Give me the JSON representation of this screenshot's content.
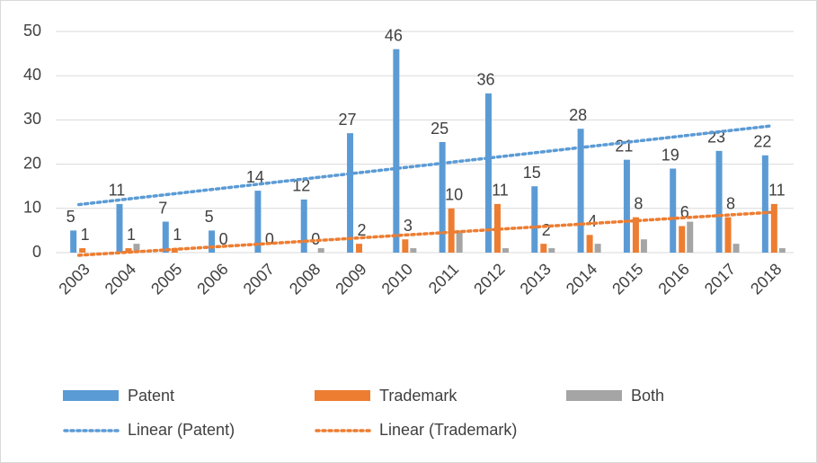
{
  "chart_data": {
    "type": "bar",
    "categories": [
      "2003",
      "2004",
      "2005",
      "2006",
      "2007",
      "2008",
      "2009",
      "2010",
      "2011",
      "2012",
      "2013",
      "2014",
      "2015",
      "2016",
      "2017",
      "2018"
    ],
    "series": [
      {
        "name": "Patent",
        "color": "#5b9bd5",
        "values": [
          5,
          11,
          7,
          5,
          14,
          12,
          27,
          46,
          25,
          36,
          15,
          28,
          21,
          19,
          23,
          22
        ],
        "show_labels": true,
        "trendline": {
          "name": "Linear (Patent)",
          "color": "#5b9bd5"
        }
      },
      {
        "name": "Trademark",
        "color": "#ed7d31",
        "values": [
          1,
          1,
          1,
          0,
          0,
          0,
          2,
          3,
          10,
          11,
          2,
          4,
          8,
          6,
          8,
          11
        ],
        "show_labels": true,
        "trendline": {
          "name": "Linear (Trademark)",
          "color": "#ed7d31"
        }
      },
      {
        "name": "Both",
        "color": "#a5a5a5",
        "values": [
          0,
          2,
          0,
          0,
          0,
          1,
          0,
          1,
          5,
          1,
          1,
          2,
          3,
          7,
          2,
          1
        ],
        "show_labels": false
      }
    ],
    "ylim": [
      0,
      50
    ],
    "yticks": [
      0,
      10,
      20,
      30,
      40,
      50
    ],
    "grid": true,
    "legend": "bottom"
  }
}
